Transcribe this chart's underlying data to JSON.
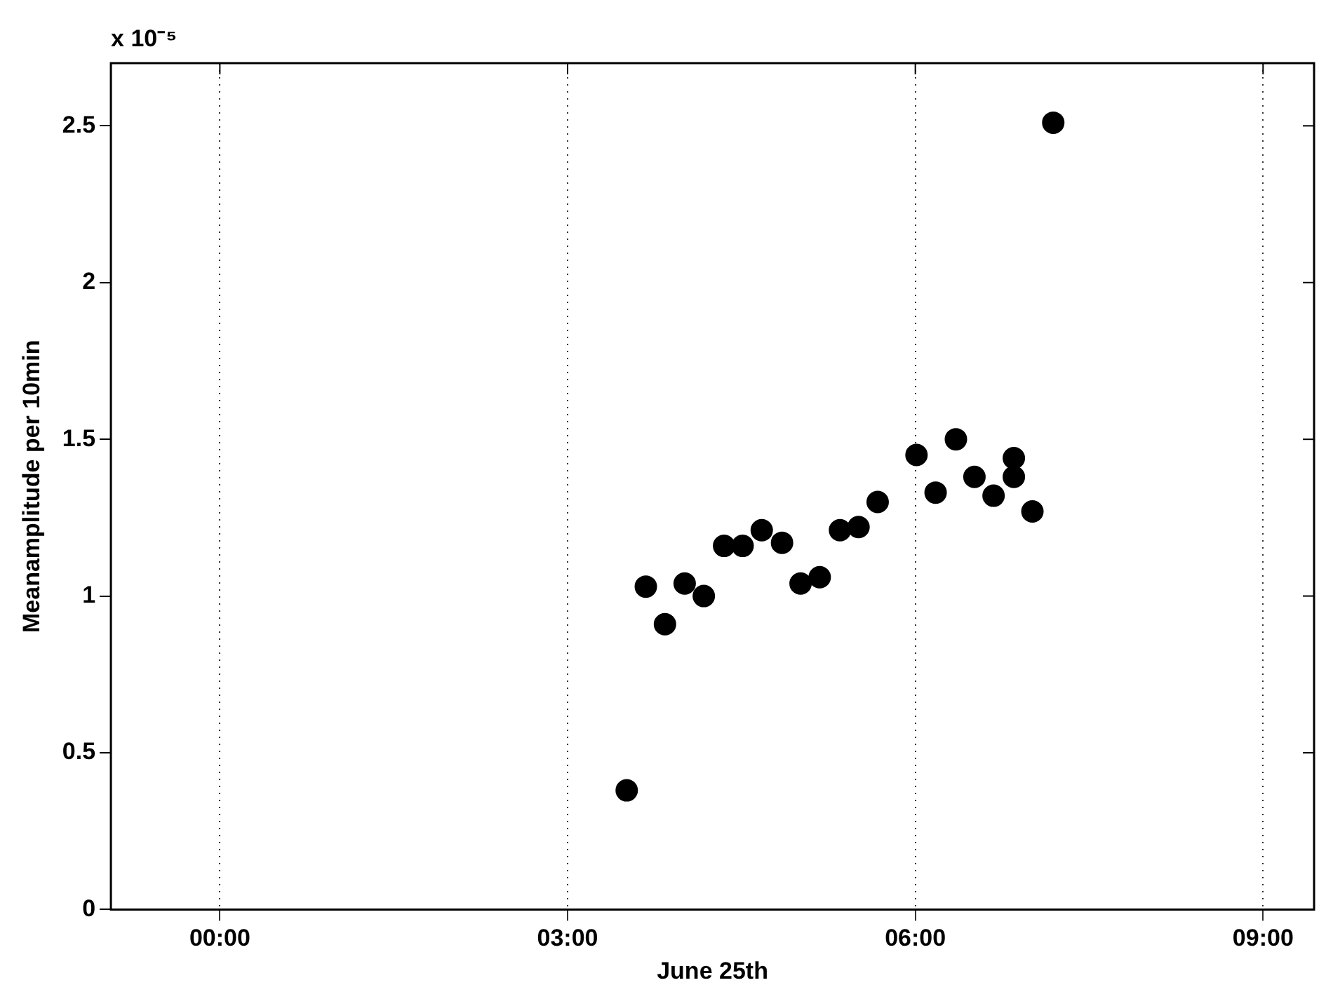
{
  "chart_data": {
    "type": "scatter",
    "xlabel": "June 25th",
    "ylabel": "Meanamplitude per 10min",
    "annotations": [
      "x 10⁻⁵"
    ],
    "x": [
      3.51,
      3.675,
      3.84,
      4.01,
      4.175,
      4.35,
      4.51,
      4.675,
      4.85,
      5.01,
      5.175,
      5.35,
      5.51,
      5.675,
      6.01,
      6.175,
      6.35,
      6.51,
      6.675,
      6.85,
      6.85,
      7.01,
      7.19
    ],
    "series": [
      {
        "color": "#000000",
        "values": [
          0.38,
          1.03,
          0.91,
          1.04,
          1.0,
          1.16,
          1.16,
          1.21,
          1.17,
          1.04,
          1.06,
          1.21,
          1.22,
          1.3,
          1.45,
          1.33,
          1.5,
          1.38,
          1.32,
          1.44,
          1.38,
          1.27,
          2.51
        ]
      }
    ],
    "xlim": [
      -0.94,
      9.44
    ],
    "xticks": [
      {
        "value": 0,
        "label": "00:00"
      },
      {
        "value": 3,
        "label": "03:00"
      },
      {
        "value": 6,
        "label": "06:00"
      },
      {
        "value": 9,
        "label": "09:00"
      }
    ],
    "ylim": [
      0,
      2.7
    ],
    "yticks": [
      0,
      0.5,
      1,
      1.5,
      2,
      2.5
    ],
    "grid": "x",
    "marker": "circle",
    "legend": false
  }
}
